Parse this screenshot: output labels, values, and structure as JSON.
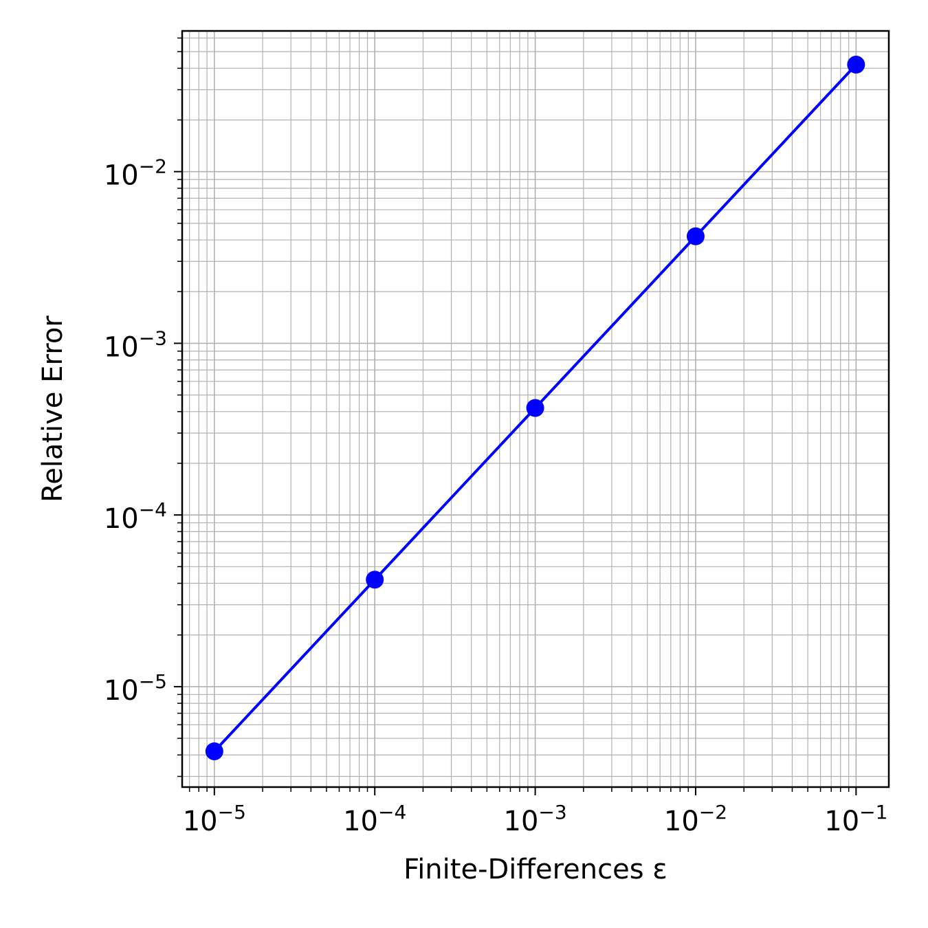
{
  "chart_data": {
    "type": "line",
    "title": "",
    "xlabel": "Finite-Differences ε",
    "ylabel": "Relative Error",
    "xscale": "log",
    "yscale": "log",
    "xlim": [
      6.3e-06,
      0.16
    ],
    "ylim": [
      2.6e-06,
      0.066
    ],
    "grid": "major and minor",
    "legend": "none",
    "x_ticks": [
      {
        "value": 1e-05,
        "base": "10",
        "exp": "−5"
      },
      {
        "value": 0.0001,
        "base": "10",
        "exp": "−4"
      },
      {
        "value": 0.001,
        "base": "10",
        "exp": "−3"
      },
      {
        "value": 0.01,
        "base": "10",
        "exp": "−2"
      },
      {
        "value": 0.1,
        "base": "10",
        "exp": "−1"
      }
    ],
    "y_ticks": [
      {
        "value": 1e-05,
        "base": "10",
        "exp": "−5"
      },
      {
        "value": 0.0001,
        "base": "10",
        "exp": "−4"
      },
      {
        "value": 0.001,
        "base": "10",
        "exp": "−3"
      },
      {
        "value": 0.01,
        "base": "10",
        "exp": "−2"
      }
    ],
    "series": [
      {
        "color": "#0000ff",
        "marker": "circle",
        "x": [
          1e-05,
          0.0001,
          0.001,
          0.01,
          0.1
        ],
        "y": [
          4.2e-06,
          4.2e-05,
          0.00042,
          0.0042,
          0.042
        ]
      }
    ]
  }
}
